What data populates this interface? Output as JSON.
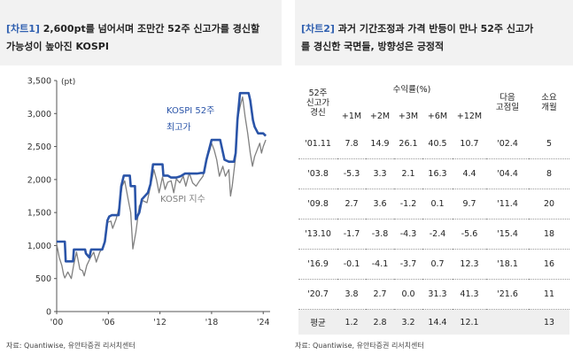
{
  "left": {
    "tag": "[차트1]",
    "title_line1": " 2,600pt를 넘어서며 조만간 52주 신고가를 경신할",
    "title_line2": "가능성이 높아진 KOSPI",
    "source": "자료: Quantiwise, 유안타증권 리서치센터"
  },
  "right": {
    "tag": "[차트2]",
    "title_line1": " 과거 기간조정과 가격 반등이 만나 52주 신고가",
    "title_line2": "를 경신한 국면들, 방향성은 긍정적",
    "source": "자료: Quantiwise, 유안타증권 리서치센터"
  },
  "chart_data": {
    "type": "line",
    "unit_label": "(pt)",
    "ylim": [
      0,
      3500
    ],
    "yticks": [
      0,
      500,
      1000,
      1500,
      2000,
      2500,
      3000,
      3500
    ],
    "ytick_labels": [
      "0",
      "500",
      "1,000",
      "1,500",
      "2,000",
      "2,500",
      "3,000",
      "3,500"
    ],
    "xlim": [
      2000,
      2024.8
    ],
    "xticks": [
      2000,
      2006,
      2012,
      2018,
      2024
    ],
    "xtick_labels": [
      "'00",
      "'06",
      "'12",
      "'18",
      "'24"
    ],
    "annotations": [
      {
        "text": "KOSPI 52주",
        "color": "#2a54a8"
      },
      {
        "text": "최고가",
        "color": "#2a54a8"
      },
      {
        "text": "KOSPI 지수",
        "color": "#808080"
      }
    ],
    "series": [
      {
        "name": "KOSPI 52주 최고가",
        "color": "#2a54a8",
        "x": [
          2000.0,
          2000.95,
          2001.05,
          2001.9,
          2002.0,
          2002.3,
          2002.4,
          2003.3,
          2003.4,
          2003.8,
          2004.0,
          2004.3,
          2004.5,
          2005.3,
          2005.6,
          2005.9,
          2006.1,
          2006.4,
          2007.2,
          2007.5,
          2007.8,
          2008.5,
          2008.6,
          2009.1,
          2009.2,
          2009.6,
          2009.9,
          2010.6,
          2010.9,
          2011.2,
          2011.4,
          2012.3,
          2012.4,
          2012.9,
          2013.3,
          2013.9,
          2014.4,
          2014.9,
          2015.3,
          2015.8,
          2016.3,
          2016.8,
          2017.1,
          2017.4,
          2017.7,
          2018.0,
          2018.3,
          2018.8,
          2019.0,
          2019.5,
          2020.0,
          2020.6,
          2020.8,
          2021.0,
          2021.3,
          2022.0,
          2022.3,
          2022.5,
          2022.8,
          2023.0,
          2023.4,
          2023.7,
          2024.0,
          2024.3
        ],
        "y": [
          1060,
          1060,
          760,
          760,
          940,
          940,
          940,
          940,
          880,
          820,
          940,
          940,
          940,
          940,
          1060,
          1380,
          1440,
          1460,
          1460,
          1900,
          2060,
          2060,
          1900,
          1900,
          1400,
          1500,
          1700,
          1800,
          1930,
          2230,
          2230,
          2230,
          2060,
          2060,
          2030,
          2030,
          2050,
          2090,
          2090,
          2090,
          2090,
          2100,
          2100,
          2300,
          2450,
          2600,
          2600,
          2600,
          2600,
          2300,
          2270,
          2270,
          2400,
          2900,
          3310,
          3310,
          3310,
          3200,
          2900,
          2800,
          2700,
          2700,
          2700,
          2660
        ]
      },
      {
        "name": "KOSPI 지수",
        "color": "#808080",
        "x": [
          2000.0,
          2000.3,
          2000.6,
          2000.8,
          2000.95,
          2001.3,
          2001.7,
          2002.0,
          2002.3,
          2002.7,
          2003.0,
          2003.2,
          2003.5,
          2003.9,
          2004.3,
          2004.6,
          2005.0,
          2005.5,
          2005.9,
          2006.3,
          2006.5,
          2006.9,
          2007.3,
          2007.6,
          2007.9,
          2008.3,
          2008.6,
          2008.85,
          2009.2,
          2009.6,
          2010.0,
          2010.5,
          2010.9,
          2011.3,
          2011.6,
          2011.9,
          2012.3,
          2012.6,
          2012.9,
          2013.3,
          2013.6,
          2013.9,
          2014.3,
          2014.7,
          2015.0,
          2015.4,
          2015.8,
          2016.2,
          2016.6,
          2017.0,
          2017.4,
          2017.8,
          2018.0,
          2018.3,
          2018.6,
          2018.9,
          2019.3,
          2019.6,
          2020.0,
          2020.2,
          2020.4,
          2020.8,
          2021.0,
          2021.3,
          2021.6,
          2021.9,
          2022.2,
          2022.5,
          2022.75,
          2023.0,
          2023.3,
          2023.6,
          2023.8,
          2024.0,
          2024.3
        ],
        "y": [
          1020,
          820,
          700,
          560,
          510,
          600,
          500,
          720,
          900,
          640,
          620,
          540,
          700,
          810,
          900,
          750,
          900,
          1000,
          1350,
          1370,
          1260,
          1400,
          1600,
          1900,
          1980,
          1700,
          1500,
          950,
          1200,
          1600,
          1680,
          1650,
          1900,
          2150,
          2000,
          1800,
          2040,
          1850,
          1960,
          1980,
          1800,
          2010,
          1950,
          2050,
          1900,
          2100,
          1950,
          1900,
          1980,
          2050,
          2300,
          2450,
          2550,
          2450,
          2300,
          2050,
          2200,
          2050,
          2150,
          1750,
          1900,
          2350,
          2900,
          3100,
          3250,
          2950,
          2700,
          2400,
          2200,
          2350,
          2450,
          2550,
          2400,
          2500,
          2600
        ]
      }
    ]
  },
  "table": {
    "header_group": "수익률(%)",
    "col1_header_lines": [
      "52주",
      "신고가",
      "경신"
    ],
    "returns_headers": [
      "+1M",
      "+2M",
      "+3M",
      "+6M",
      "+12M"
    ],
    "next_high_lines": [
      "다음",
      "고점일"
    ],
    "months_lines": [
      "소요",
      "개월"
    ],
    "rows": [
      {
        "period": "'01.11",
        "r1": "7.8",
        "r2": "14.9",
        "r3": "26.1",
        "r6": "40.5",
        "r12": "10.7",
        "next": "'02.4",
        "months": "5"
      },
      {
        "period": "'03.8",
        "r1": "-5.3",
        "r2": "3.3",
        "r3": "2.1",
        "r6": "16.3",
        "r12": "4.4",
        "next": "'04.4",
        "months": "8"
      },
      {
        "period": "'09.8",
        "r1": "2.7",
        "r2": "3.6",
        "r3": "-1.2",
        "r6": "0.1",
        "r12": "9.7",
        "next": "'11.4",
        "months": "20"
      },
      {
        "period": "'13.10",
        "r1": "-1.7",
        "r2": "-3.8",
        "r3": "-4.3",
        "r6": "-2.4",
        "r12": "-5.6",
        "next": "'15.4",
        "months": "18"
      },
      {
        "period": "'16.9",
        "r1": "-0.1",
        "r2": "-4.1",
        "r3": "-3.7",
        "r6": "0.7",
        "r12": "12.3",
        "next": "'18.1",
        "months": "16"
      },
      {
        "period": "'20.7",
        "r1": "3.8",
        "r2": "2.7",
        "r3": "0.0",
        "r6": "31.3",
        "r12": "41.3",
        "next": "'21.6",
        "months": "11"
      }
    ],
    "average": {
      "label": "평균",
      "r1": "1.2",
      "r2": "2.8",
      "r3": "3.2",
      "r6": "14.4",
      "r12": "12.1",
      "next": "",
      "months": "13"
    }
  }
}
